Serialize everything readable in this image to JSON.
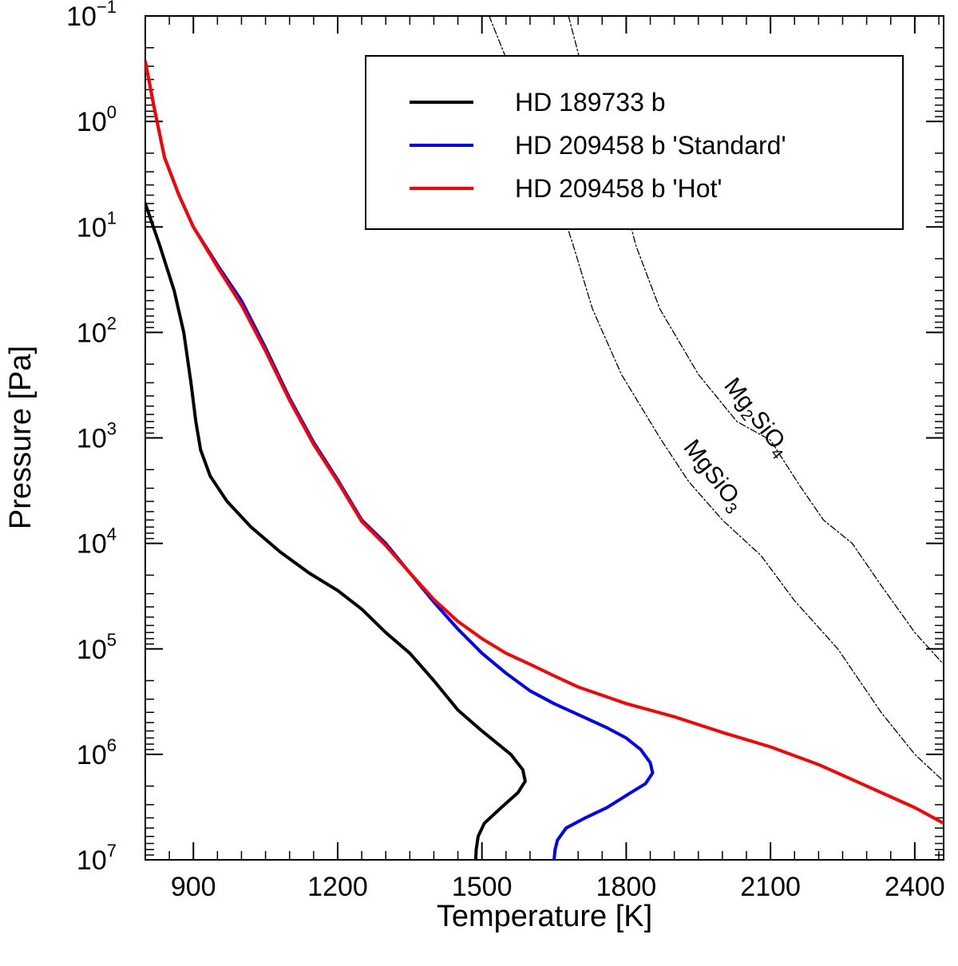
{
  "chart_data": {
    "type": "line",
    "title": "",
    "xlabel": "Temperature [K]",
    "ylabel": "Pressure [Pa]",
    "xlim": [
      800,
      2460
    ],
    "ylim": [
      0.1,
      10000000
    ],
    "yscale": "log",
    "xticks": [
      900,
      1200,
      1500,
      1800,
      2100,
      2400
    ],
    "yticks": [
      {
        "value": 0.1,
        "base": "10",
        "exp": "−1"
      },
      {
        "value": 1,
        "base": "10",
        "exp": "0"
      },
      {
        "value": 10,
        "base": "10",
        "exp": "1"
      },
      {
        "value": 100,
        "base": "10",
        "exp": "2"
      },
      {
        "value": 1000,
        "base": "10",
        "exp": "3"
      },
      {
        "value": 10000,
        "base": "10",
        "exp": "4"
      },
      {
        "value": 100000,
        "base": "10",
        "exp": "5"
      },
      {
        "value": 1000000,
        "base": "10",
        "exp": "6"
      },
      {
        "value": 10000000,
        "base": "10",
        "exp": "7"
      }
    ],
    "legend_position": "top-right",
    "series": [
      {
        "name": "HD 189733 b",
        "color": "#000000",
        "style": "solid",
        "points": [
          [
            800,
            6
          ],
          [
            830,
            15
          ],
          [
            860,
            40
          ],
          [
            880,
            100
          ],
          [
            895,
            300
          ],
          [
            905,
            700
          ],
          [
            915,
            1300
          ],
          [
            935,
            2300
          ],
          [
            970,
            4000
          ],
          [
            1020,
            7000
          ],
          [
            1080,
            12000
          ],
          [
            1140,
            19000
          ],
          [
            1200,
            28000
          ],
          [
            1250,
            42000
          ],
          [
            1300,
            70000
          ],
          [
            1350,
            110000
          ],
          [
            1400,
            200000
          ],
          [
            1450,
            380000
          ],
          [
            1500,
            600000
          ],
          [
            1560,
            1000000
          ],
          [
            1585,
            1400000
          ],
          [
            1590,
            1800000
          ],
          [
            1575,
            2300000
          ],
          [
            1540,
            3200000
          ],
          [
            1505,
            4500000
          ],
          [
            1492,
            6000000
          ],
          [
            1488,
            8000000
          ],
          [
            1487,
            10000000
          ]
        ]
      },
      {
        "name": "HD 209458 b 'Standard'",
        "color": "#0000ff",
        "style": "solid",
        "points": [
          [
            800,
            0.27
          ],
          [
            820,
            0.8
          ],
          [
            840,
            2.2
          ],
          [
            870,
            5
          ],
          [
            900,
            10
          ],
          [
            950,
            23
          ],
          [
            1000,
            50
          ],
          [
            1050,
            140
          ],
          [
            1100,
            420
          ],
          [
            1150,
            1100
          ],
          [
            1200,
            2500
          ],
          [
            1250,
            6000
          ],
          [
            1300,
            10000
          ],
          [
            1350,
            19000
          ],
          [
            1400,
            36000
          ],
          [
            1450,
            65000
          ],
          [
            1500,
            110000
          ],
          [
            1550,
            170000
          ],
          [
            1600,
            250000
          ],
          [
            1650,
            330000
          ],
          [
            1700,
            420000
          ],
          [
            1760,
            560000
          ],
          [
            1800,
            700000
          ],
          [
            1830,
            900000
          ],
          [
            1850,
            1200000
          ],
          [
            1855,
            1500000
          ],
          [
            1840,
            1900000
          ],
          [
            1810,
            2300000
          ],
          [
            1760,
            3200000
          ],
          [
            1715,
            4000000
          ],
          [
            1675,
            5000000
          ],
          [
            1657,
            6500000
          ],
          [
            1652,
            8000000
          ],
          [
            1650,
            10000000
          ]
        ]
      },
      {
        "name": "HD 209458 b 'Hot'",
        "color": "#ff0000",
        "style": "solid",
        "points": [
          [
            800,
            0.27
          ],
          [
            820,
            0.8
          ],
          [
            840,
            2.2
          ],
          [
            870,
            5
          ],
          [
            900,
            10
          ],
          [
            950,
            24
          ],
          [
            1000,
            55
          ],
          [
            1050,
            150
          ],
          [
            1100,
            440
          ],
          [
            1150,
            1150
          ],
          [
            1200,
            2600
          ],
          [
            1250,
            6200
          ],
          [
            1300,
            10500
          ],
          [
            1350,
            19000
          ],
          [
            1400,
            34000
          ],
          [
            1450,
            55000
          ],
          [
            1500,
            80000
          ],
          [
            1550,
            110000
          ],
          [
            1600,
            140000
          ],
          [
            1650,
            180000
          ],
          [
            1700,
            230000
          ],
          [
            1800,
            330000
          ],
          [
            1900,
            440000
          ],
          [
            2000,
            620000
          ],
          [
            2100,
            850000
          ],
          [
            2200,
            1250000
          ],
          [
            2300,
            2000000
          ],
          [
            2400,
            3200000
          ],
          [
            2460,
            4500000
          ]
        ]
      },
      {
        "name": "Mg2SiO4",
        "color": "#000000",
        "style": "dash-dot",
        "points": [
          [
            1680,
            0.1
          ],
          [
            1720,
            0.5
          ],
          [
            1780,
            3
          ],
          [
            1820,
            15
          ],
          [
            1870,
            60
          ],
          [
            1950,
            250
          ],
          [
            2030,
            700
          ],
          [
            2100,
            1050
          ],
          [
            2160,
            2800
          ],
          [
            2210,
            6000
          ],
          [
            2270,
            10000
          ],
          [
            2330,
            25000
          ],
          [
            2400,
            70000
          ],
          [
            2460,
            140000
          ]
        ]
      },
      {
        "name": "MgSiO3",
        "color": "#000000",
        "style": "dash-dot",
        "points": [
          [
            1515,
            0.1
          ],
          [
            1550,
            0.25
          ],
          [
            1590,
            0.7
          ],
          [
            1640,
            3
          ],
          [
            1690,
            15
          ],
          [
            1730,
            60
          ],
          [
            1790,
            250
          ],
          [
            1870,
            1000
          ],
          [
            1930,
            2600
          ],
          [
            2000,
            6000
          ],
          [
            2080,
            13000
          ],
          [
            2150,
            35000
          ],
          [
            2240,
            100000
          ],
          [
            2330,
            400000
          ],
          [
            2400,
            1000000
          ],
          [
            2460,
            1800000
          ]
        ]
      }
    ],
    "legend": [
      {
        "label": "HD 189733 b",
        "color": "#000000"
      },
      {
        "label": "HD 209458 b 'Standard'",
        "color": "#0000ff"
      },
      {
        "label": "HD 209458 b 'Hot'",
        "color": "#ff0000"
      }
    ],
    "annotations": [
      {
        "name": "mg2sio4-label",
        "parts": [
          "Mg",
          "2",
          "SiO",
          "4"
        ],
        "at": [
          2060,
          700
        ]
      },
      {
        "name": "mgsio3-label",
        "parts": [
          "MgSiO",
          "3"
        ],
        "at": [
          1970,
          2500
        ]
      }
    ]
  }
}
